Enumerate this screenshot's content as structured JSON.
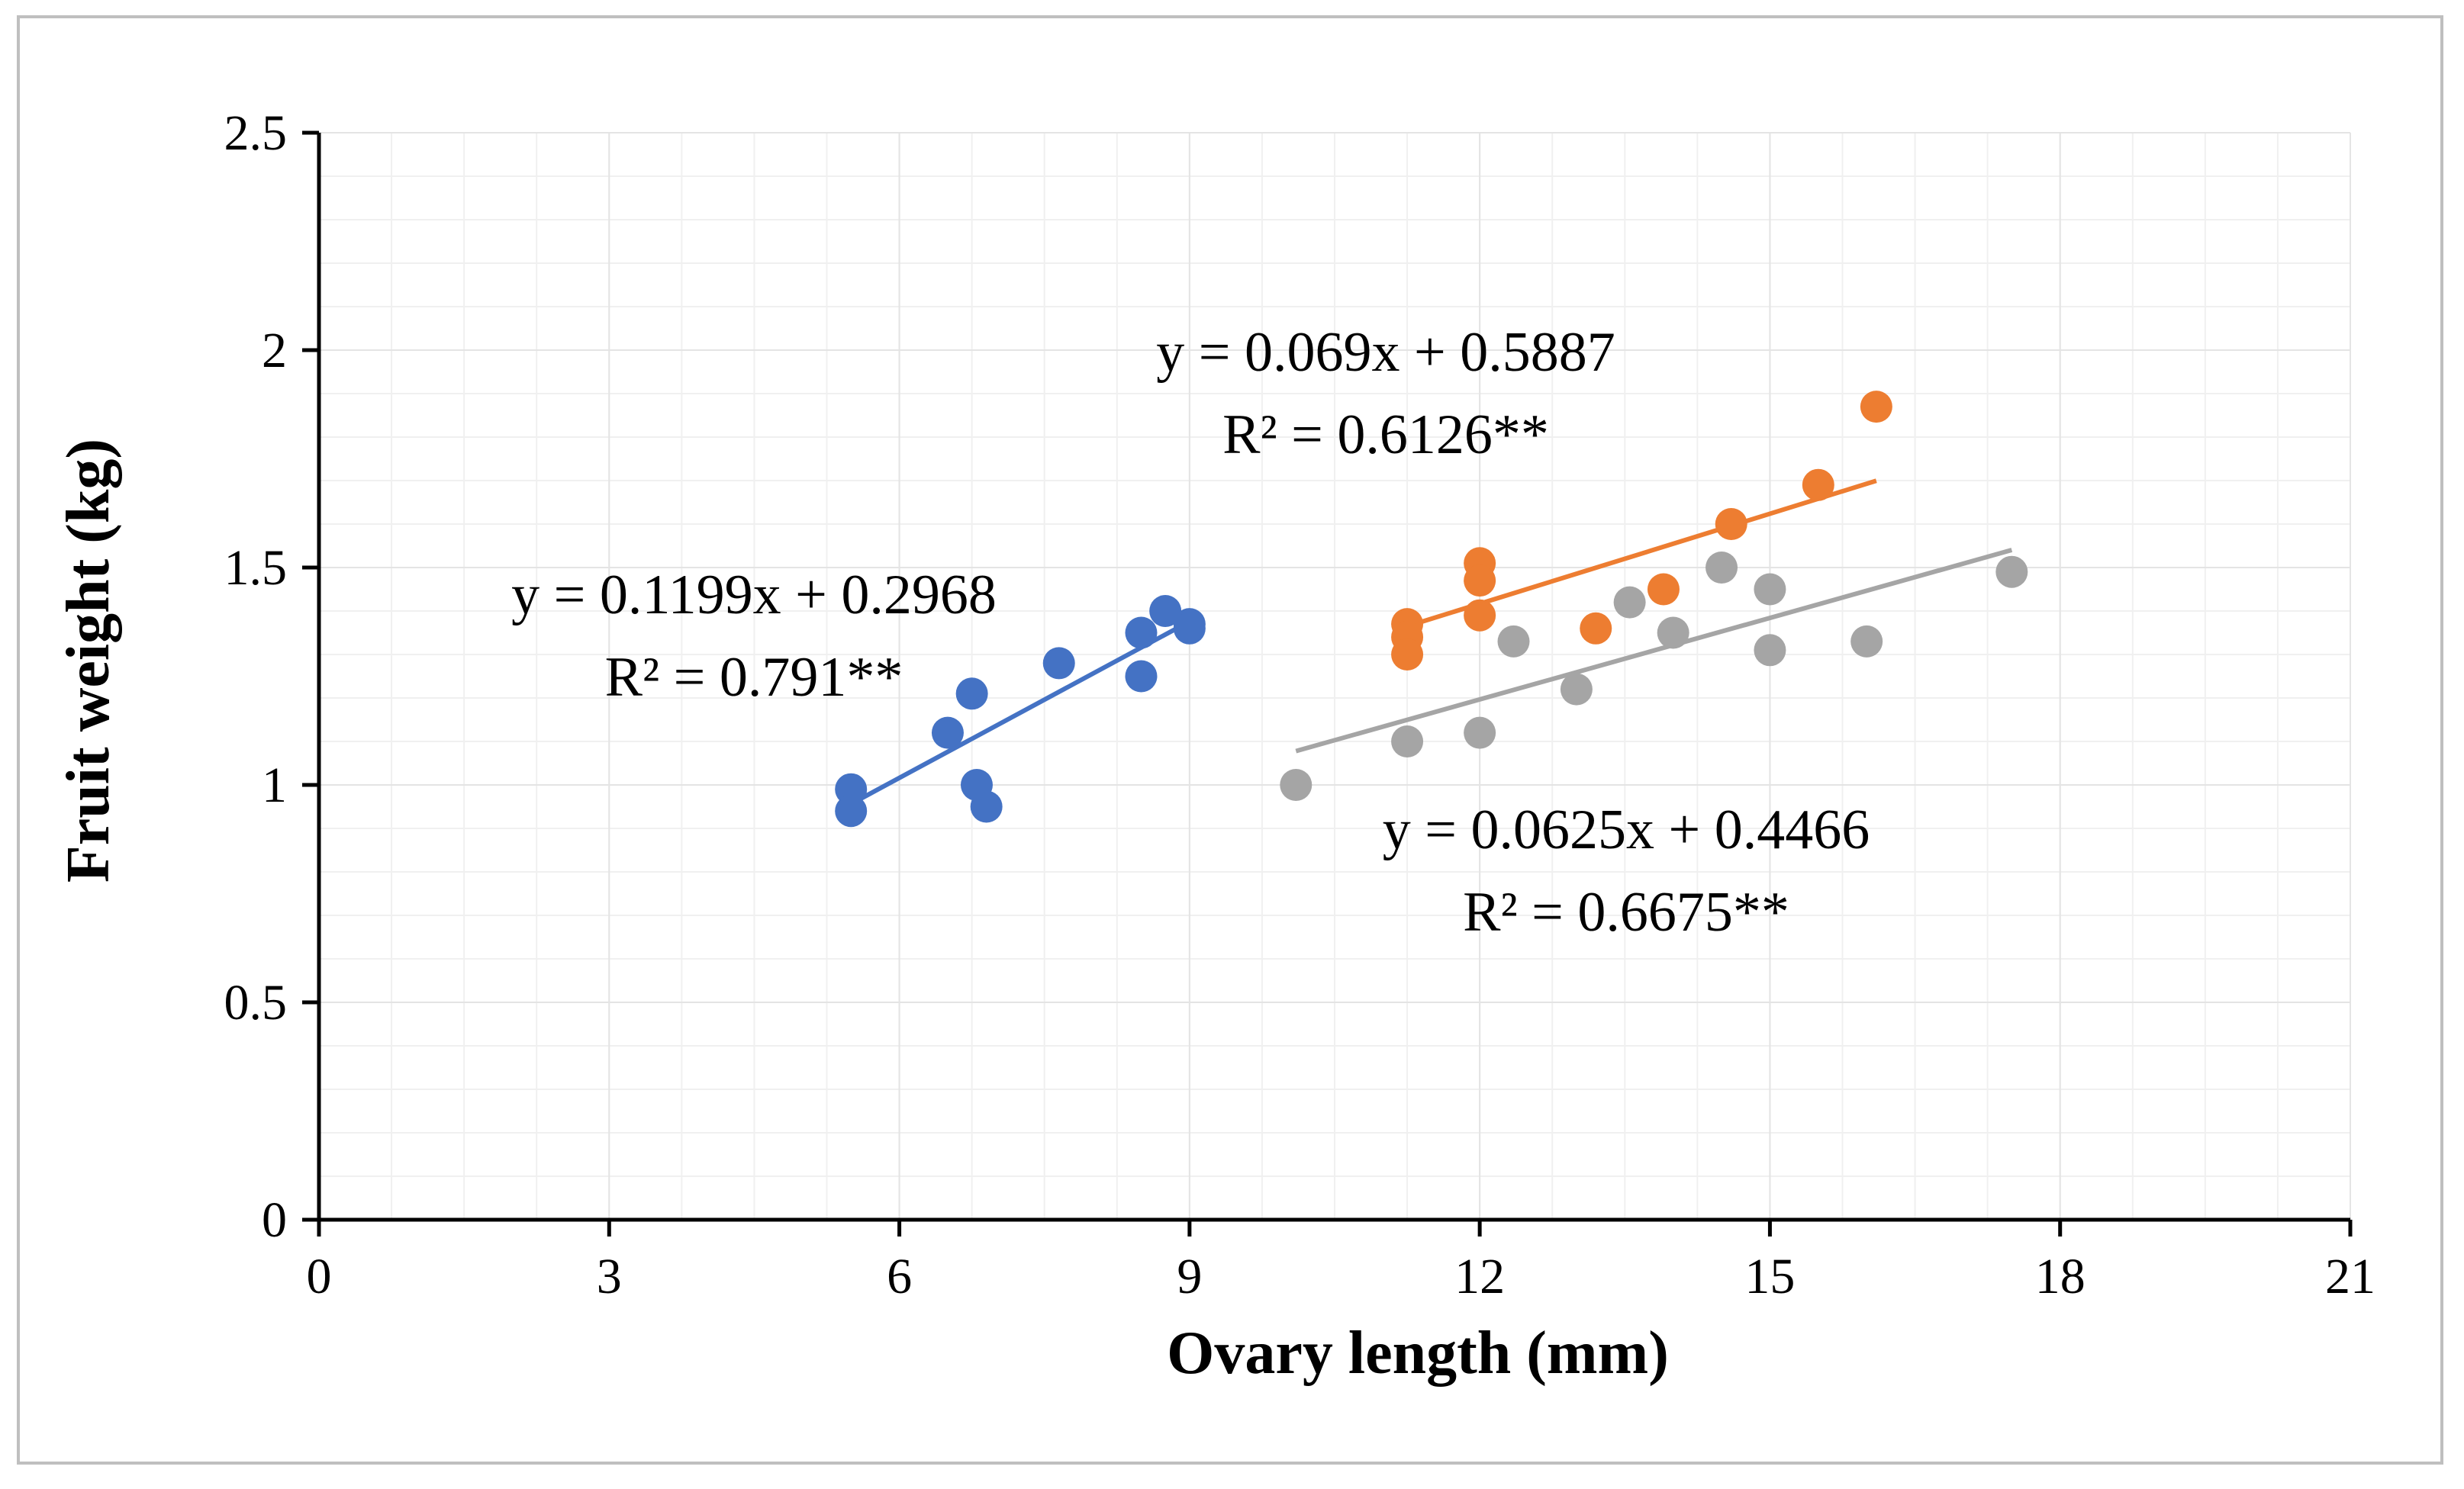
{
  "chart_data": {
    "type": "scatter",
    "title": "",
    "xlabel": "Ovary length (mm)",
    "ylabel": "Fruit weight (kg)",
    "xlim": [
      0,
      21
    ],
    "ylim": [
      0,
      2.5
    ],
    "xticks": [
      0,
      3,
      6,
      9,
      12,
      15,
      18,
      21
    ],
    "yticks": [
      0,
      0.5,
      1,
      1.5,
      2,
      2.5
    ],
    "xtick_labels": [
      "0",
      "3",
      "6",
      "9",
      "12",
      "15",
      "18",
      "21"
    ],
    "ytick_labels": [
      "0",
      "0.5",
      "1",
      "1.5",
      "2",
      "2.5"
    ],
    "grid": true,
    "legend": "none",
    "series": [
      {
        "name": "blue",
        "color": "#4472c4",
        "x": [
          5.5,
          5.5,
          6.5,
          6.75,
          6.8,
          6.9,
          7.65,
          8.5,
          8.5,
          8.75,
          9.0,
          9.0
        ],
        "y": [
          0.99,
          0.94,
          1.12,
          1.21,
          1.0,
          0.95,
          1.28,
          1.25,
          1.35,
          1.4,
          1.37,
          1.36
        ],
        "trendline": {
          "slope": 0.1199,
          "intercept": 0.2968,
          "x_range": [
            5.5,
            9.0
          ]
        },
        "equation": "y = 0.1199x + 0.2968",
        "r2": "R² = 0.791**"
      },
      {
        "name": "orange",
        "color": "#ed7d31",
        "x": [
          11.25,
          11.25,
          11.25,
          12.0,
          12.0,
          12.0,
          13.2,
          13.9,
          14.6,
          15.5,
          16.1
        ],
        "y": [
          1.37,
          1.34,
          1.3,
          1.51,
          1.47,
          1.39,
          1.36,
          1.45,
          1.6,
          1.69,
          1.87
        ],
        "trendline": {
          "slope": 0.069,
          "intercept": 0.5887,
          "x_range": [
            11.25,
            16.1
          ]
        },
        "equation": "y = 0.069x + 0.5887",
        "r2": "R² = 0.6126**"
      },
      {
        "name": "gray",
        "color": "#a5a5a5",
        "x": [
          10.1,
          11.25,
          12.0,
          12.35,
          13.0,
          13.55,
          14.0,
          14.5,
          15.0,
          15.0,
          16.0,
          17.5
        ],
        "y": [
          1.0,
          1.1,
          1.12,
          1.33,
          1.22,
          1.42,
          1.35,
          1.5,
          1.45,
          1.31,
          1.33,
          1.49
        ],
        "trendline": {
          "slope": 0.0625,
          "intercept": 0.4466,
          "x_range": [
            10.1,
            17.5
          ]
        },
        "equation": "y = 0.0625x + 0.4466",
        "r2": "R² = 0.6675**"
      }
    ]
  }
}
